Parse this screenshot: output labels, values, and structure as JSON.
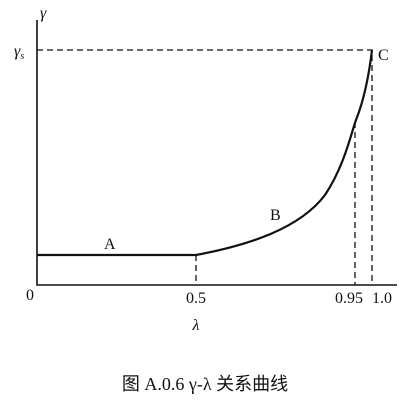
{
  "axes": {
    "y_label": "γ",
    "y_tick": {
      "symbol": "γ",
      "subscript": "s"
    },
    "x_label": "λ",
    "origin": "0",
    "x_ticks": [
      "0.5",
      "0.95",
      "1.0"
    ]
  },
  "points": {
    "a": "A",
    "b": "B",
    "c": "C"
  },
  "caption": "图 A.0.6  γ-λ 关系曲线"
}
